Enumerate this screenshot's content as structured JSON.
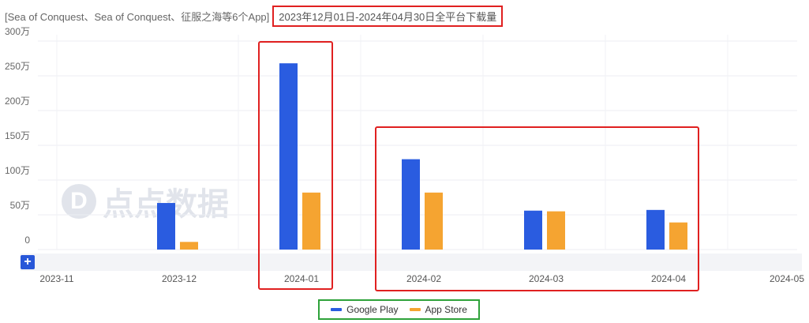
{
  "header": {
    "app_title": "[Sea of Conquest、Sea of Conquest、征服之海等6个App]",
    "date_range": "2023年12月01日-2024年04月30日全平台下载量"
  },
  "watermark": {
    "logo_text": "D",
    "text": "点点数据"
  },
  "controls": {
    "plus_label": "+"
  },
  "colors": {
    "google_play": "#2a5ce0",
    "app_store": "#f5a431",
    "highlight": "#e02020",
    "legend_border": "#2ea23a"
  },
  "chart_data": {
    "type": "bar",
    "categories": [
      "2023-11",
      "2023-12",
      "2024-01",
      "2024-02",
      "2024-03",
      "2024-04",
      "2024-05"
    ],
    "series": [
      {
        "name": "Google Play",
        "values": [
          null,
          67,
          268,
          130,
          56,
          57,
          null
        ]
      },
      {
        "name": "App Store",
        "values": [
          null,
          11,
          82,
          82,
          55,
          39,
          null
        ]
      }
    ],
    "yticks": [
      "0",
      "50万",
      "100万",
      "150万",
      "200万",
      "250万",
      "300万"
    ],
    "ylim": [
      0,
      300
    ],
    "unit": "万",
    "legend": "bottom-center",
    "grid": true
  }
}
